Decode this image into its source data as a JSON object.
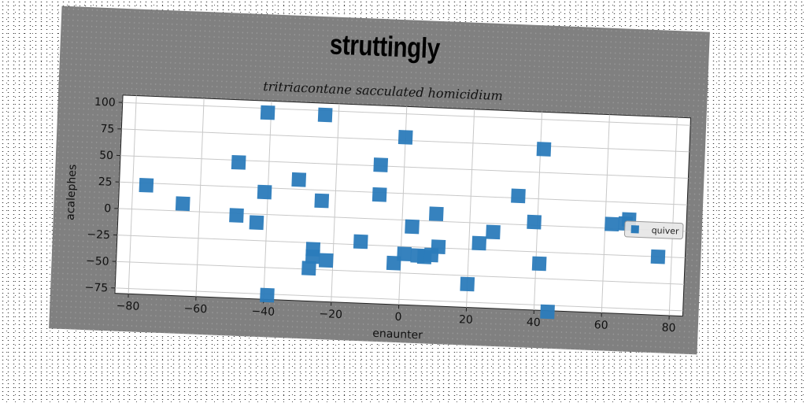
{
  "chart_data": {
    "type": "scatter",
    "title": "struttingly",
    "subtitle": "tritriacontane sacculated homicidium",
    "xlabel": "enaunter",
    "ylabel": "acalephes",
    "xlim": [
      -84,
      84
    ],
    "ylim": [
      -80,
      107
    ],
    "xticks": [
      -80,
      -60,
      -40,
      -20,
      0,
      20,
      40,
      60,
      80
    ],
    "yticks": [
      100,
      75,
      50,
      25,
      0,
      -25,
      -50,
      -75
    ],
    "xtick_labels": [
      "−80",
      "−60",
      "−40",
      "−20",
      "0",
      "20",
      "40",
      "60",
      "80"
    ],
    "ytick_labels": [
      "100",
      "75",
      "50",
      "25",
      "0",
      "−25",
      "−50",
      "−75"
    ],
    "grid": true,
    "legend": {
      "position": "right",
      "entries": [
        "quiver"
      ]
    },
    "series": [
      {
        "name": "quiver",
        "color": "#2b7bba",
        "marker": "square",
        "points": [
          [
            -76,
            23
          ],
          [
            -65,
            7
          ],
          [
            -49,
            48
          ],
          [
            -49,
            -2
          ],
          [
            -43,
            -8
          ],
          [
            -41,
            21
          ],
          [
            -41,
            96
          ],
          [
            -39,
            -76
          ],
          [
            -31,
            34
          ],
          [
            -27,
            -49
          ],
          [
            -26,
            -31
          ],
          [
            -26,
            -38
          ],
          [
            -24,
            15
          ],
          [
            -24,
            96
          ],
          [
            -22,
            -41
          ],
          [
            -12,
            -22
          ],
          [
            -7,
            51
          ],
          [
            -7,
            23
          ],
          [
            -2,
            -41
          ],
          [
            0,
            78
          ],
          [
            1,
            -32
          ],
          [
            3,
            -6
          ],
          [
            5,
            -33
          ],
          [
            7,
            -34
          ],
          [
            9,
            -32
          ],
          [
            10,
            7
          ],
          [
            11,
            -24
          ],
          [
            20,
            -58
          ],
          [
            23,
            -19
          ],
          [
            27,
            -8
          ],
          [
            34,
            27
          ],
          [
            39,
            3
          ],
          [
            41,
            -36
          ],
          [
            41,
            72
          ],
          [
            44,
            -81
          ],
          [
            62,
            4
          ],
          [
            66,
            5
          ],
          [
            67,
            9
          ],
          [
            76,
            -25
          ]
        ]
      }
    ]
  }
}
